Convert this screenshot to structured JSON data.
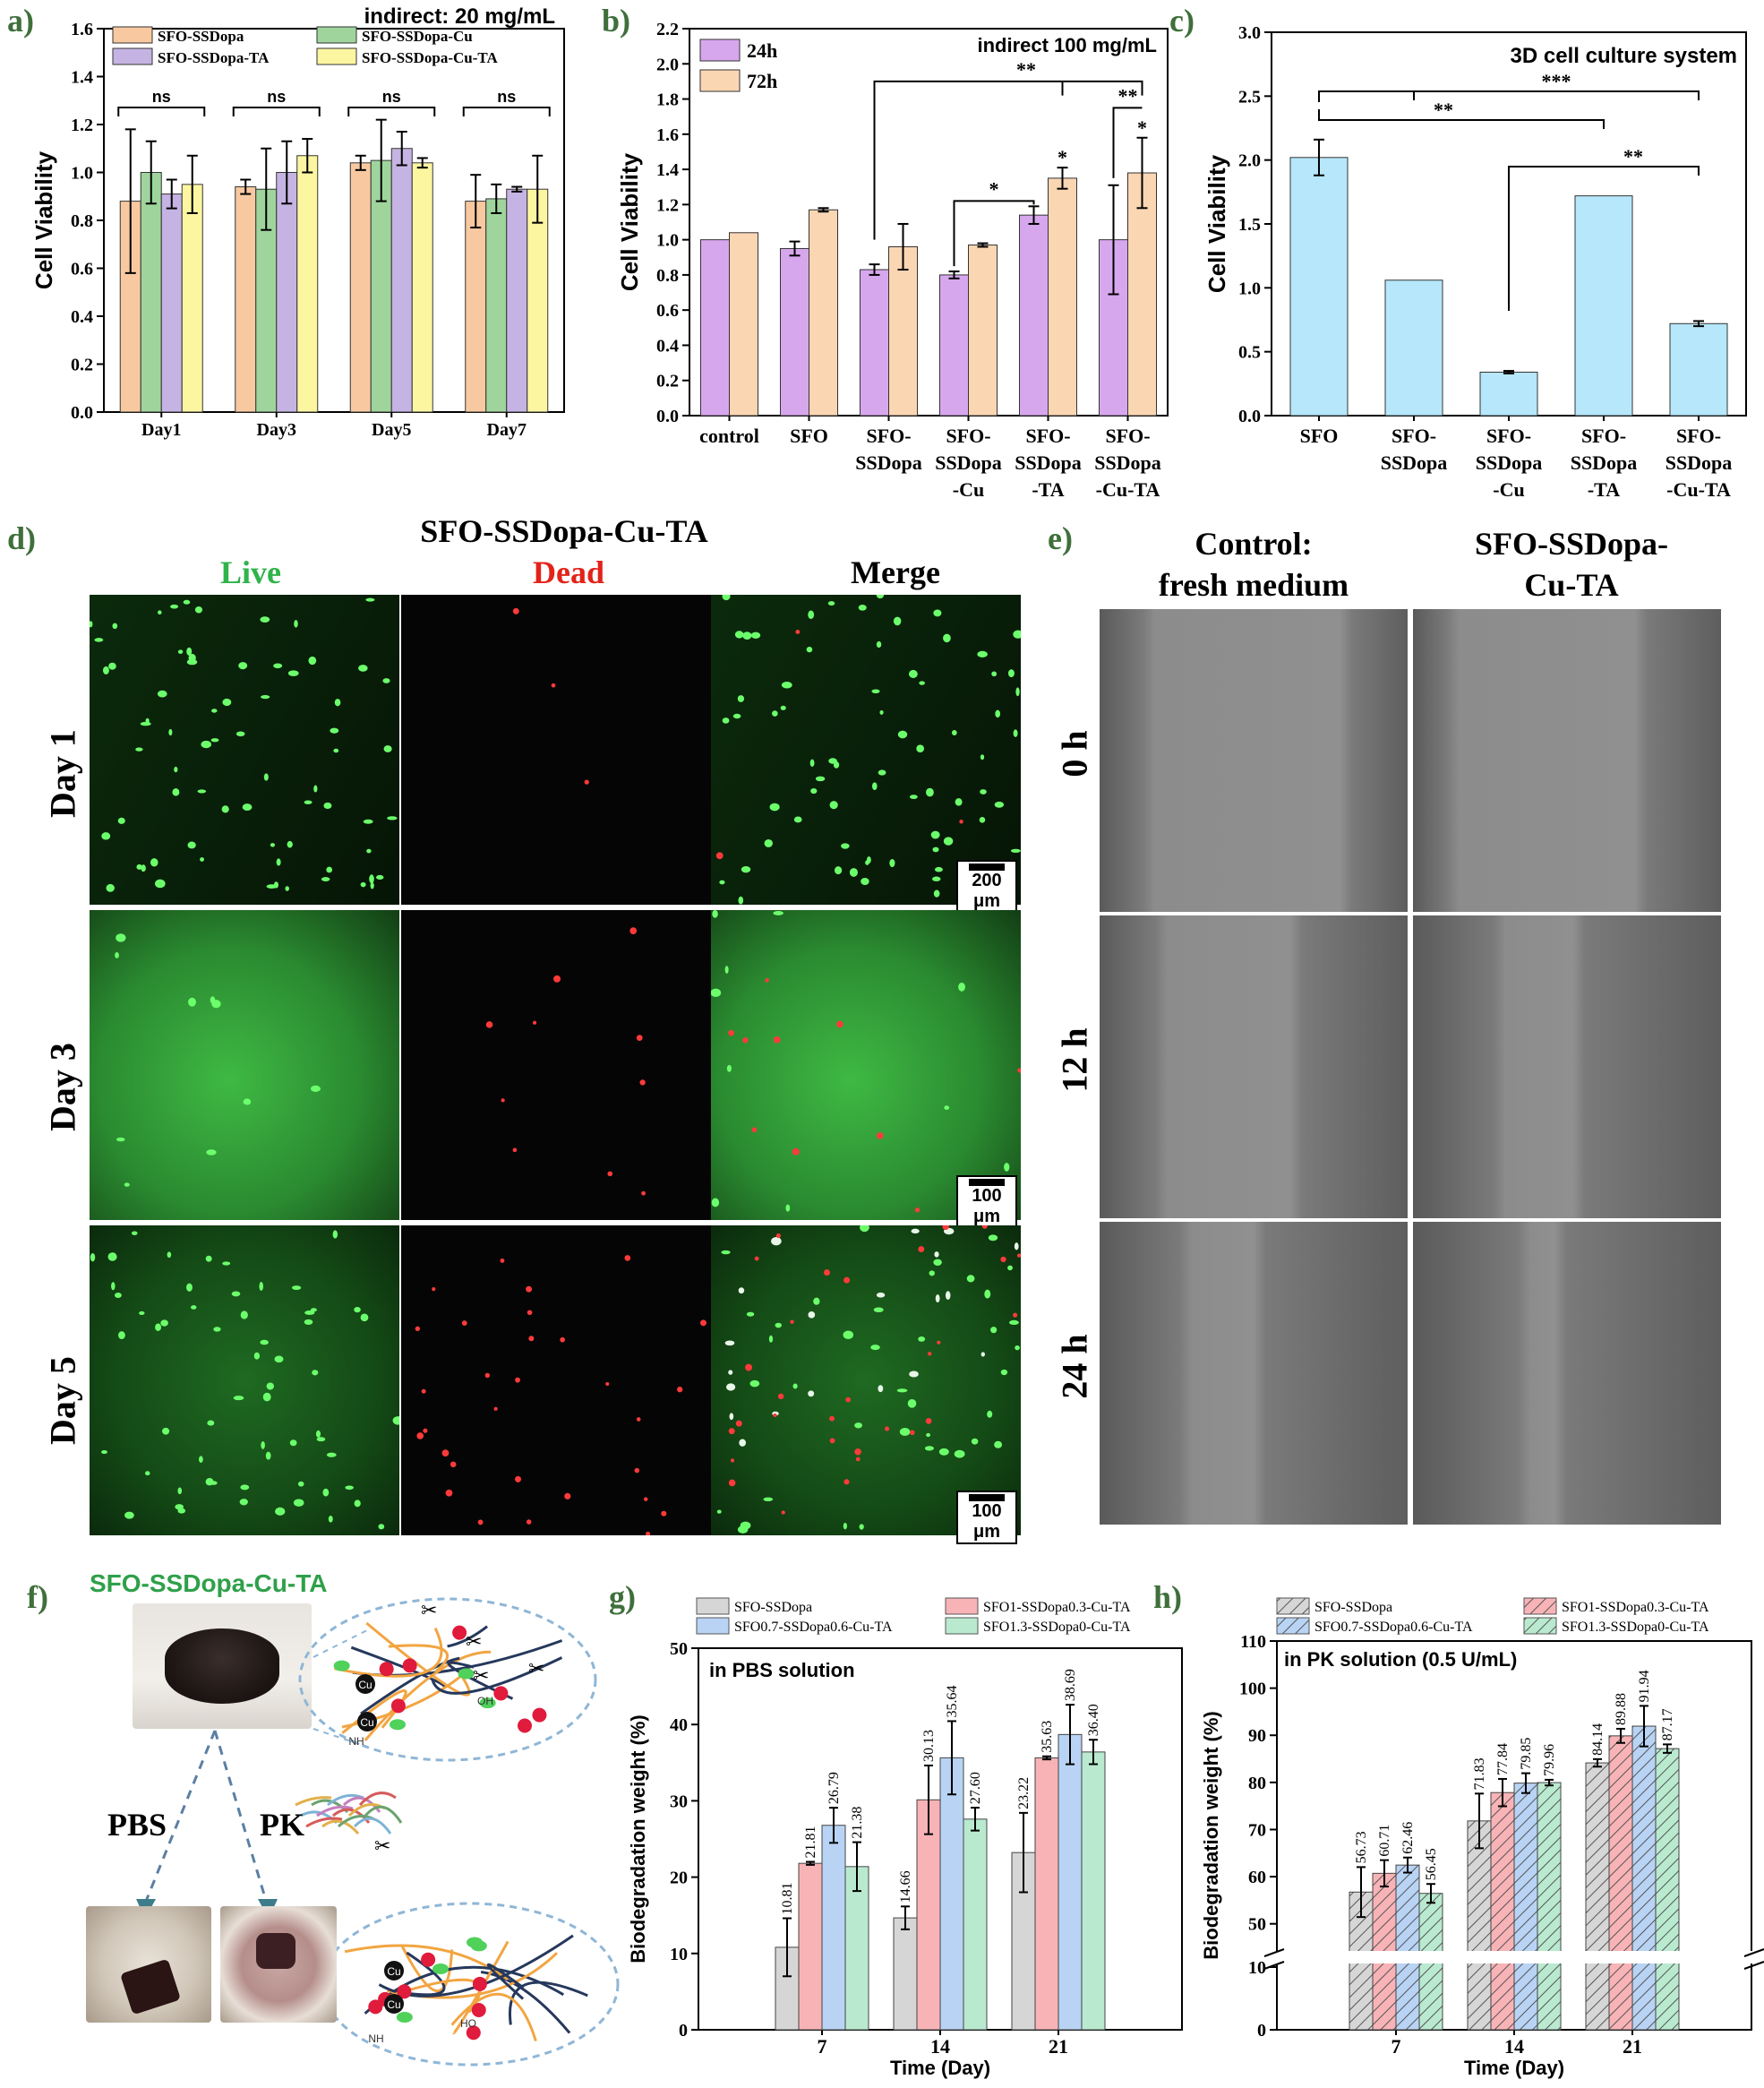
{
  "panels": {
    "a": "a)",
    "b": "b)",
    "c": "c)",
    "d": "d)",
    "e": "e)",
    "f": "f)",
    "g": "g)",
    "h": "h)"
  },
  "colors": {
    "orange": "#f8c9a0",
    "green": "#9fd59d",
    "purple": "#c5b4e3",
    "yellow": "#fdf6a1",
    "violet": "#d7a7ee",
    "peach": "#fbd6b3",
    "cyan": "#b6e7fb",
    "gray": "#d6d6d6",
    "pink": "#f8b3b6",
    "blue": "#b8d3f4",
    "mint": "#b9ead0",
    "label_green": "#3f6f3b",
    "live": "#2fb34a",
    "dead": "#e2231a"
  },
  "chart_data": [
    {
      "id": "a",
      "type": "bar",
      "title": "indirect: 20 mg/mL",
      "xlabel": "",
      "ylabel": "Cell Viability",
      "ylim": [
        0.0,
        1.6
      ],
      "yticks": [
        "0.0",
        "0.2",
        "0.4",
        "0.6",
        "0.8",
        "1.0",
        "1.2",
        "1.4",
        "1.6"
      ],
      "categories": [
        "Day1",
        "Day3",
        "Day5",
        "Day7"
      ],
      "series": [
        {
          "name": "SFO-SSDopa",
          "color": "orange",
          "values": [
            0.88,
            0.94,
            1.04,
            0.88
          ],
          "errors": [
            0.3,
            0.03,
            0.03,
            0.11
          ]
        },
        {
          "name": "SFO-SSDopa-Cu",
          "color": "green",
          "values": [
            1.0,
            0.93,
            1.05,
            0.89
          ],
          "errors": [
            0.13,
            0.17,
            0.17,
            0.06
          ]
        },
        {
          "name": "SFO-SSDopa-TA",
          "color": "purple",
          "values": [
            0.91,
            1.0,
            1.1,
            0.93
          ],
          "errors": [
            0.06,
            0.13,
            0.07,
            0.01
          ]
        },
        {
          "name": "SFO-SSDopa-Cu-TA",
          "color": "yellow",
          "values": [
            0.95,
            1.07,
            1.04,
            0.93
          ],
          "errors": [
            0.12,
            0.07,
            0.02,
            0.14
          ]
        }
      ],
      "annotations": [
        "ns",
        "ns",
        "ns",
        "ns"
      ],
      "legend": "top"
    },
    {
      "id": "b",
      "type": "bar",
      "title": "indirect 100 mg/mL",
      "xlabel": "",
      "ylabel": "Cell Viability",
      "ylim": [
        0.0,
        2.2
      ],
      "yticks": [
        "0.0",
        "0.2",
        "0.4",
        "0.6",
        "0.8",
        "1.0",
        "1.2",
        "1.4",
        "1.6",
        "1.8",
        "2.0",
        "2.2"
      ],
      "categories": [
        [
          "control"
        ],
        [
          "SFO"
        ],
        [
          "SFO-",
          "SSDopa"
        ],
        [
          "SFO-",
          "SSDopa",
          "-Cu"
        ],
        [
          "SFO-",
          "SSDopa",
          "-TA"
        ],
        [
          "SFO-",
          "SSDopa",
          "-Cu-TA"
        ]
      ],
      "series": [
        {
          "name": "24h",
          "color": "violet",
          "values": [
            1.0,
            0.95,
            0.83,
            0.8,
            1.14,
            1.0
          ],
          "errors": [
            0,
            0.04,
            0.03,
            0.02,
            0.05,
            0.31
          ]
        },
        {
          "name": "72h",
          "color": "peach",
          "values": [
            1.04,
            1.17,
            0.96,
            0.97,
            1.35,
            1.38
          ],
          "errors": [
            0,
            0.01,
            0.13,
            0.01,
            0.06,
            0.2
          ]
        }
      ],
      "annotations": [
        "*",
        "*",
        "*",
        "**",
        "**"
      ],
      "legend": "top-left"
    },
    {
      "id": "c",
      "type": "bar",
      "title": "3D cell culture system",
      "xlabel": "",
      "ylabel": "Cell Viability",
      "ylim": [
        0.0,
        3.0
      ],
      "yticks": [
        "0.0",
        "0.5",
        "1.0",
        "1.5",
        "2.0",
        "2.5",
        "3.0"
      ],
      "categories": [
        [
          "SFO"
        ],
        [
          "SFO-",
          "SSDopa"
        ],
        [
          "SFO-",
          "SSDopa",
          "-Cu"
        ],
        [
          "SFO-",
          "SSDopa",
          "-TA"
        ],
        [
          "SFO-",
          "SSDopa",
          "-Cu-TA"
        ]
      ],
      "series": [
        {
          "color": "cyan",
          "values": [
            2.02,
            1.06,
            0.34,
            1.72,
            0.72
          ],
          "errors": [
            0.14,
            0.0,
            0.01,
            0.0,
            0.02
          ]
        }
      ],
      "annotations": [
        "***",
        "**",
        "**"
      ]
    },
    {
      "id": "g",
      "type": "bar",
      "title": "in PBS solution",
      "xlabel": "Time (Day)",
      "ylabel": "Biodegradation weight (%)",
      "ylim": [
        0,
        50
      ],
      "yticks": [
        "0",
        "10",
        "20",
        "30",
        "40",
        "50"
      ],
      "categories": [
        "7",
        "14",
        "21"
      ],
      "series": [
        {
          "name": "SFO-SSDopa",
          "color": "gray",
          "values": [
            10.81,
            14.66,
            23.22
          ],
          "errors": [
            3.8,
            1.5,
            5.2
          ],
          "labels": [
            "10.81",
            "14.66",
            "23.22"
          ]
        },
        {
          "name": "SFO1-SSDopa0.3-Cu-TA",
          "color": "pink",
          "values": [
            21.81,
            30.13,
            35.63
          ],
          "errors": [
            0.2,
            4.5,
            0.2
          ],
          "labels": [
            "21.81",
            "30.13",
            "35.63"
          ]
        },
        {
          "name": "SFO0.7-SSDopa0.6-Cu-TA",
          "color": "blue",
          "values": [
            26.79,
            35.64,
            38.69
          ],
          "errors": [
            2.3,
            4.8,
            3.9
          ],
          "labels": [
            "26.79",
            "35.64",
            "38.69"
          ]
        },
        {
          "name": "SFO1.3-SSDopa0-Cu-TA",
          "color": "mint",
          "values": [
            21.38,
            27.6,
            36.4
          ],
          "errors": [
            3.2,
            1.5,
            1.6
          ],
          "labels": [
            "21.38",
            "27.60",
            "36.40"
          ]
        }
      ],
      "legend": "top"
    },
    {
      "id": "h",
      "type": "bar",
      "title": "in PK solution (0.5 U/mL)",
      "xlabel": "Time (Day)",
      "ylabel": "Biodegradation weight (%)",
      "ylim": [
        0,
        110
      ],
      "axis_break": [
        10,
        45
      ],
      "yticks": [
        "0",
        "10",
        "50",
        "60",
        "70",
        "80",
        "90",
        "100",
        "110"
      ],
      "categories": [
        "7",
        "14",
        "21"
      ],
      "series": [
        {
          "name": "SFO-SSDopa",
          "color": "gray",
          "values": [
            56.73,
            71.83,
            84.14
          ],
          "errors": [
            5.3,
            5.8,
            0.8
          ],
          "labels": [
            "56.73",
            "71.83",
            "84.14"
          ]
        },
        {
          "name": "SFO1-SSDopa0.3-Cu-TA",
          "color": "pink",
          "values": [
            60.71,
            77.84,
            89.88
          ],
          "errors": [
            2.8,
            2.9,
            1.5
          ],
          "labels": [
            "60.71",
            "77.84",
            "89.88"
          ]
        },
        {
          "name": "SFO0.7-SSDopa0.6-Cu-TA",
          "color": "blue",
          "values": [
            62.46,
            79.85,
            91.94
          ],
          "errors": [
            1.6,
            2.1,
            4.3
          ],
          "labels": [
            "62.46",
            "79.85",
            "91.94"
          ]
        },
        {
          "name": "SFO1.3-SSDopa0-Cu-TA",
          "color": "mint",
          "values": [
            56.45,
            79.96,
            87.17
          ],
          "errors": [
            2.0,
            0.6,
            0.9
          ],
          "labels": [
            "56.45",
            "79.96",
            "87.17"
          ]
        }
      ],
      "legend": "top"
    }
  ],
  "d": {
    "title": "SFO-SSDopa-Cu-TA",
    "columns": [
      "Live",
      "Dead",
      "Merge"
    ],
    "rows": [
      "Day 1",
      "Day 3",
      "Day 5"
    ],
    "scalebars": [
      "200 μm",
      "100 μm",
      "100 μm"
    ]
  },
  "e": {
    "col1": [
      "Control:",
      "fresh medium"
    ],
    "col2": [
      "SFO-SSDopa-",
      "Cu-TA"
    ],
    "rows": [
      "0 h",
      "12 h",
      "24 h"
    ]
  },
  "f": {
    "title": "SFO-SSDopa-Cu-TA",
    "pbs": "PBS",
    "pk": "PK",
    "mol": [
      "Cu",
      "Cu",
      "NH",
      "OH",
      "Cu",
      "Cu",
      "NH",
      "HO"
    ]
  }
}
